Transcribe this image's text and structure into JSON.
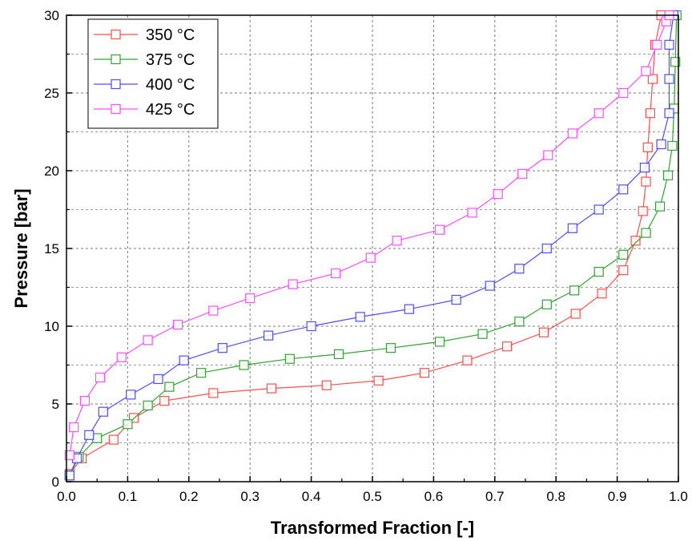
{
  "chart_data": {
    "type": "line",
    "xlabel": "Transformed Fraction [-]",
    "ylabel": "Pressure [bar]",
    "xlim": [
      0.0,
      1.0
    ],
    "ylim": [
      0,
      30
    ],
    "x_ticks": [
      "0.0",
      "0.1",
      "0.2",
      "0.3",
      "0.4",
      "0.5",
      "0.6",
      "0.7",
      "0.8",
      "0.9",
      "1.0"
    ],
    "y_ticks": [
      "0",
      "5",
      "10",
      "15",
      "20",
      "25",
      "30"
    ],
    "grid": "dashed",
    "legend_position": "top-left",
    "marker": "open-square",
    "series": [
      {
        "name": "350 °C",
        "color": "#ff4d4d",
        "points": [
          [
            0.005,
            0.5
          ],
          [
            0.025,
            1.5
          ],
          [
            0.077,
            2.7
          ],
          [
            0.11,
            4.1
          ],
          [
            0.16,
            5.2
          ],
          [
            0.24,
            5.7
          ],
          [
            0.335,
            6.0
          ],
          [
            0.425,
            6.2
          ],
          [
            0.51,
            6.5
          ],
          [
            0.585,
            7.0
          ],
          [
            0.655,
            7.8
          ],
          [
            0.72,
            8.7
          ],
          [
            0.78,
            9.6
          ],
          [
            0.832,
            10.8
          ],
          [
            0.875,
            12.1
          ],
          [
            0.91,
            13.6
          ],
          [
            0.93,
            15.5
          ],
          [
            0.942,
            17.4
          ],
          [
            0.947,
            19.3
          ],
          [
            0.95,
            21.5
          ],
          [
            0.954,
            23.7
          ],
          [
            0.958,
            25.9
          ],
          [
            0.962,
            28.1
          ],
          [
            0.972,
            30.0
          ]
        ]
      },
      {
        "name": "375 °C",
        "color": "#33a033",
        "points": [
          [
            0.005,
            0.4
          ],
          [
            0.02,
            1.6
          ],
          [
            0.05,
            2.8
          ],
          [
            0.1,
            3.7
          ],
          [
            0.133,
            4.9
          ],
          [
            0.168,
            6.1
          ],
          [
            0.22,
            7.0
          ],
          [
            0.29,
            7.5
          ],
          [
            0.365,
            7.9
          ],
          [
            0.445,
            8.2
          ],
          [
            0.53,
            8.6
          ],
          [
            0.61,
            9.0
          ],
          [
            0.68,
            9.5
          ],
          [
            0.74,
            10.3
          ],
          [
            0.785,
            11.4
          ],
          [
            0.83,
            12.3
          ],
          [
            0.87,
            13.5
          ],
          [
            0.91,
            14.6
          ],
          [
            0.947,
            16.0
          ],
          [
            0.97,
            17.7
          ],
          [
            0.983,
            19.7
          ],
          [
            0.99,
            21.6
          ],
          [
            0.993,
            24.0
          ],
          [
            0.995,
            27.0
          ],
          [
            0.997,
            30.0
          ]
        ]
      },
      {
        "name": "400 °C",
        "color": "#4d4dff",
        "points": [
          [
            0.005,
            0.4
          ],
          [
            0.017,
            1.5
          ],
          [
            0.037,
            3.0
          ],
          [
            0.06,
            4.5
          ],
          [
            0.105,
            5.6
          ],
          [
            0.15,
            6.6
          ],
          [
            0.192,
            7.8
          ],
          [
            0.255,
            8.6
          ],
          [
            0.33,
            9.4
          ],
          [
            0.4,
            10.0
          ],
          [
            0.48,
            10.6
          ],
          [
            0.56,
            11.1
          ],
          [
            0.637,
            11.7
          ],
          [
            0.692,
            12.6
          ],
          [
            0.74,
            13.7
          ],
          [
            0.785,
            15.0
          ],
          [
            0.827,
            16.3
          ],
          [
            0.87,
            17.5
          ],
          [
            0.91,
            18.8
          ],
          [
            0.945,
            20.2
          ],
          [
            0.972,
            21.7
          ],
          [
            0.985,
            23.7
          ],
          [
            0.985,
            25.9
          ],
          [
            0.985,
            28.1
          ],
          [
            0.992,
            30.0
          ]
        ]
      },
      {
        "name": "425 °C",
        "color": "#ff4dff",
        "points": [
          [
            0.005,
            1.7
          ],
          [
            0.012,
            3.5
          ],
          [
            0.03,
            5.2
          ],
          [
            0.055,
            6.7
          ],
          [
            0.09,
            8.0
          ],
          [
            0.133,
            9.1
          ],
          [
            0.182,
            10.1
          ],
          [
            0.24,
            11.0
          ],
          [
            0.3,
            11.8
          ],
          [
            0.37,
            12.7
          ],
          [
            0.44,
            13.4
          ],
          [
            0.497,
            14.4
          ],
          [
            0.54,
            15.5
          ],
          [
            0.61,
            16.2
          ],
          [
            0.663,
            17.3
          ],
          [
            0.705,
            18.5
          ],
          [
            0.745,
            19.8
          ],
          [
            0.787,
            21.0
          ],
          [
            0.827,
            22.4
          ],
          [
            0.87,
            23.7
          ],
          [
            0.91,
            25.0
          ],
          [
            0.947,
            26.4
          ],
          [
            0.965,
            28.1
          ],
          [
            0.98,
            29.6
          ],
          [
            0.985,
            30.0
          ]
        ]
      }
    ]
  }
}
